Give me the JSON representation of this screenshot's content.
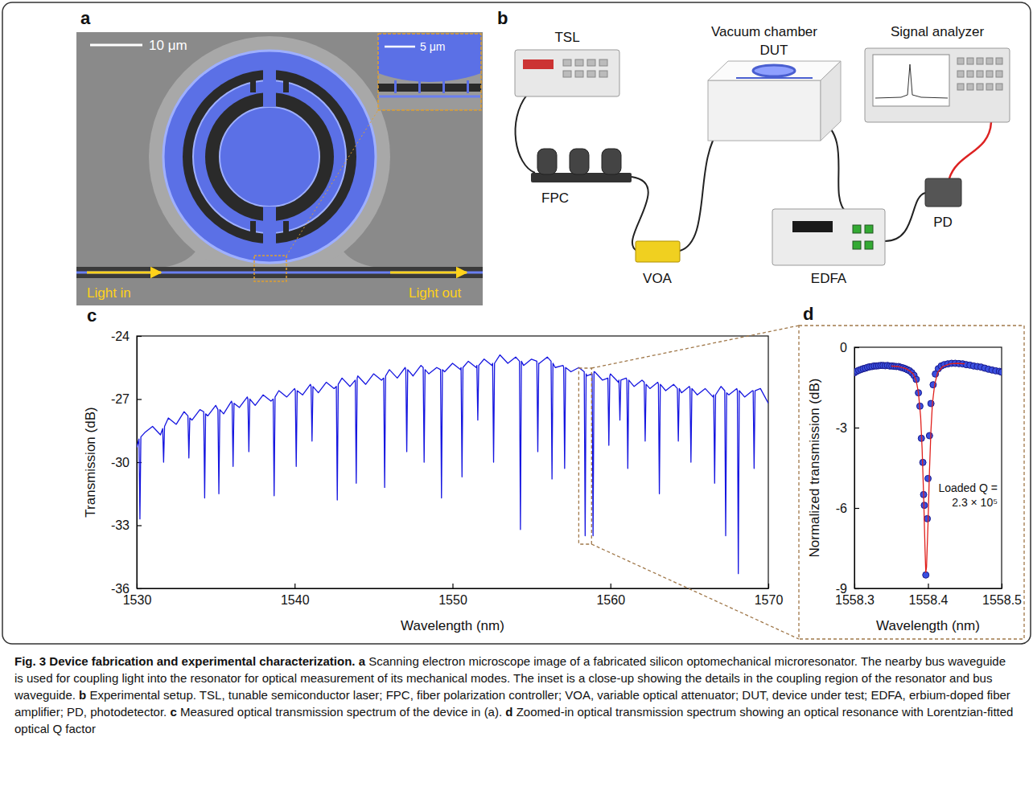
{
  "panels": {
    "a": {
      "label": "a",
      "scale_bar": "10 μm",
      "inset_scale_bar": "5 μm",
      "light_in": "Light in",
      "light_out": "Light out"
    },
    "b": {
      "label": "b",
      "labels": [
        "TSL",
        "FPC",
        "VOA",
        "Vacuum chamber",
        "DUT",
        "EDFA",
        "Signal analyzer",
        "PD"
      ]
    }
  },
  "chart_data": [
    {
      "panel_label": "c",
      "type": "line",
      "color": "#1616e0",
      "xlabel": "Wavelength (nm)",
      "ylabel": "Transmission (dB)",
      "xlim": [
        1530,
        1570
      ],
      "ylim": [
        -36,
        -24
      ],
      "xticks": [
        1530,
        1540,
        1550,
        1560,
        1570
      ],
      "yticks": [
        -36,
        -33,
        -30,
        -27,
        -24
      ],
      "x": [
        1530.0,
        1530.14,
        1530.2,
        1530.26,
        1530.5,
        1531.0,
        1531.5,
        1531.64,
        1531.7,
        1531.76,
        1532.0,
        1532.5,
        1533.0,
        1533.24,
        1533.3,
        1533.36,
        1533.5,
        1534.0,
        1534.24,
        1534.3,
        1534.36,
        1534.5,
        1535.0,
        1535.14,
        1535.2,
        1535.26,
        1535.5,
        1536.0,
        1536.04,
        1536.1,
        1536.16,
        1536.5,
        1537.0,
        1537.04,
        1537.1,
        1537.16,
        1537.5,
        1538.0,
        1538.5,
        1538.64,
        1538.7,
        1538.76,
        1539.0,
        1539.5,
        1540.0,
        1540.04,
        1540.1,
        1540.16,
        1540.5,
        1541.0,
        1541.04,
        1541.1,
        1541.16,
        1541.5,
        1542.0,
        1542.5,
        1542.64,
        1542.7,
        1542.76,
        1543.0,
        1543.5,
        1543.84,
        1543.9,
        1543.96,
        1544.0,
        1544.5,
        1545.0,
        1545.5,
        1545.64,
        1545.7,
        1545.76,
        1546.0,
        1546.5,
        1547.0,
        1547.04,
        1547.1,
        1547.16,
        1547.5,
        1548.0,
        1548.14,
        1548.2,
        1548.26,
        1548.5,
        1549.0,
        1549.24,
        1549.3,
        1549.36,
        1549.5,
        1550.0,
        1550.5,
        1550.54,
        1550.6,
        1550.66,
        1551.0,
        1551.5,
        1551.54,
        1551.6,
        1551.66,
        1552.0,
        1552.5,
        1552.54,
        1552.6,
        1552.66,
        1553.0,
        1553.5,
        1554.0,
        1554.24,
        1554.3,
        1554.36,
        1554.5,
        1555.0,
        1555.34,
        1555.4,
        1555.46,
        1555.5,
        1556.0,
        1556.24,
        1556.3,
        1556.36,
        1556.5,
        1557.0,
        1557.04,
        1557.1,
        1557.16,
        1557.5,
        1558.0,
        1558.34,
        1558.4,
        1558.46,
        1558.5,
        1558.84,
        1558.9,
        1558.96,
        1559.0,
        1559.5,
        1559.84,
        1559.9,
        1559.96,
        1560.0,
        1560.5,
        1560.54,
        1560.6,
        1560.66,
        1561.0,
        1561.04,
        1561.1,
        1561.16,
        1561.5,
        1562.0,
        1562.14,
        1562.2,
        1562.26,
        1562.5,
        1563.0,
        1563.04,
        1563.1,
        1563.16,
        1563.5,
        1564.0,
        1564.24,
        1564.3,
        1564.36,
        1564.5,
        1565.0,
        1565.04,
        1565.1,
        1565.16,
        1565.5,
        1566.0,
        1566.5,
        1566.54,
        1566.6,
        1566.66,
        1567.0,
        1567.24,
        1567.3,
        1567.36,
        1567.5,
        1568.0,
        1568.04,
        1568.1,
        1568.16,
        1568.5,
        1569.0,
        1569.04,
        1569.1,
        1569.16,
        1569.5,
        1570.0
      ],
      "values": [
        -29.3,
        -28.9,
        -32.7,
        -28.8,
        -28.6,
        -28.3,
        -28.7,
        -28.4,
        -30.0,
        -28.3,
        -27.9,
        -28.2,
        -27.6,
        -27.8,
        -29.8,
        -27.9,
        -28.0,
        -27.5,
        -27.6,
        -31.7,
        -27.7,
        -27.8,
        -27.3,
        -27.5,
        -31.5,
        -27.5,
        -27.7,
        -27.1,
        -27.2,
        -30.2,
        -27.2,
        -27.4,
        -26.9,
        -27.0,
        -29.5,
        -27.0,
        -27.3,
        -26.8,
        -27.1,
        -27.0,
        -31.6,
        -26.9,
        -26.6,
        -26.9,
        -26.5,
        -26.6,
        -30.2,
        -26.6,
        -26.8,
        -26.3,
        -26.4,
        -29.0,
        -26.4,
        -26.7,
        -26.2,
        -26.5,
        -26.4,
        -31.8,
        -26.3,
        -26.0,
        -26.4,
        -26.1,
        -31.0,
        -26.0,
        -25.9,
        -26.3,
        -25.8,
        -26.1,
        -26.0,
        -31.2,
        -25.9,
        -25.6,
        -26.0,
        -25.5,
        -25.6,
        -29.5,
        -25.6,
        -25.9,
        -25.4,
        -25.5,
        -30.0,
        -25.6,
        -25.8,
        -25.5,
        -25.6,
        -31.7,
        -25.6,
        -25.7,
        -25.3,
        -25.6,
        -25.5,
        -30.7,
        -25.5,
        -25.2,
        -25.5,
        -25.4,
        -28.0,
        -25.4,
        -25.1,
        -25.4,
        -25.3,
        -30.0,
        -25.3,
        -24.9,
        -25.3,
        -25.0,
        -25.2,
        -33.2,
        -25.2,
        -25.4,
        -25.1,
        -25.2,
        -29.5,
        -25.3,
        -25.3,
        -25.0,
        -25.2,
        -30.8,
        -25.3,
        -25.5,
        -25.4,
        -25.5,
        -30.3,
        -25.5,
        -25.7,
        -25.5,
        -25.7,
        -33.5,
        -25.8,
        -25.9,
        -25.8,
        -33.5,
        -25.7,
        -25.7,
        -26.1,
        -26.0,
        -29.2,
        -25.9,
        -25.8,
        -26.2,
        -26.1,
        -28.0,
        -26.1,
        -26.0,
        -26.1,
        -30.3,
        -26.1,
        -26.4,
        -26.1,
        -26.2,
        -29.0,
        -26.3,
        -26.5,
        -26.2,
        -26.3,
        -31.5,
        -26.3,
        -26.6,
        -26.3,
        -26.5,
        -29.0,
        -26.5,
        -26.7,
        -26.4,
        -26.5,
        -30.0,
        -26.5,
        -26.8,
        -26.5,
        -26.9,
        -26.8,
        -31.0,
        -26.8,
        -26.4,
        -26.6,
        -33.5,
        -26.7,
        -26.8,
        -26.5,
        -26.6,
        -35.3,
        -26.6,
        -26.9,
        -26.6,
        -26.6,
        -30.3,
        -26.6,
        -26.5,
        -27.2
      ]
    },
    {
      "panel_label": "d",
      "type": "scatter",
      "xlabel": "Wavelength (nm)",
      "ylabel": "Normalized transmission (dB)",
      "xlim": [
        1558.3,
        1558.5
      ],
      "ylim": [
        -9,
        0
      ],
      "xticks": [
        1558.3,
        1558.4,
        1558.5
      ],
      "yticks": [
        -9,
        -6,
        -3,
        0
      ],
      "annotations": [
        "Loaded Q = 2.3 × 10⁵"
      ],
      "series": [
        {
          "type": "scatter",
          "marker": "circle",
          "color": "#3a4fe0",
          "x": [
            1558.3,
            1558.303,
            1558.306,
            1558.309,
            1558.312,
            1558.315,
            1558.318,
            1558.321,
            1558.324,
            1558.327,
            1558.33,
            1558.333,
            1558.336,
            1558.339,
            1558.342,
            1558.345,
            1558.348,
            1558.351,
            1558.354,
            1558.357,
            1558.36,
            1558.363,
            1558.366,
            1558.369,
            1558.372,
            1558.375,
            1558.378,
            1558.381,
            1558.384,
            1558.387,
            1558.389,
            1558.391,
            1558.393,
            1558.394,
            1558.395,
            1558.397,
            1558.399,
            1558.4,
            1558.402,
            1558.404,
            1558.407,
            1558.41,
            1558.414,
            1558.418,
            1558.422,
            1558.427,
            1558.432,
            1558.437,
            1558.442,
            1558.447,
            1558.452,
            1558.457,
            1558.462,
            1558.467,
            1558.472,
            1558.477,
            1558.482,
            1558.487,
            1558.492,
            1558.497,
            1558.5
          ],
          "values": [
            -0.95,
            -0.9,
            -0.86,
            -0.83,
            -0.8,
            -0.78,
            -0.75,
            -0.73,
            -0.72,
            -0.7,
            -0.7,
            -0.69,
            -0.68,
            -0.68,
            -0.69,
            -0.68,
            -0.7,
            -0.7,
            -0.71,
            -0.72,
            -0.72,
            -0.75,
            -0.77,
            -0.8,
            -0.84,
            -0.88,
            -0.95,
            -1.05,
            -1.2,
            -1.7,
            -2.2,
            -3.4,
            -4.3,
            -5.5,
            -5.9,
            -8.5,
            -6.4,
            -4.9,
            -3.3,
            -2.1,
            -1.4,
            -1.0,
            -0.8,
            -0.7,
            -0.65,
            -0.62,
            -0.6,
            -0.6,
            -0.61,
            -0.62,
            -0.65,
            -0.67,
            -0.7,
            -0.72,
            -0.74,
            -0.78,
            -0.82,
            -0.85,
            -0.88,
            -0.9,
            -0.93
          ]
        },
        {
          "type": "line",
          "color": "#e0201c",
          "x": [
            1558.35,
            1558.36,
            1558.37,
            1558.375,
            1558.38,
            1558.384,
            1558.387,
            1558.39,
            1558.392,
            1558.394,
            1558.396,
            1558.397,
            1558.398,
            1558.4,
            1558.402,
            1558.404,
            1558.406,
            1558.409,
            1558.413,
            1558.42,
            1558.43,
            1558.44,
            1558.45
          ],
          "values": [
            -0.7,
            -0.72,
            -0.8,
            -0.88,
            -1.0,
            -1.25,
            -1.7,
            -2.6,
            -3.8,
            -5.5,
            -7.6,
            -8.4,
            -8.2,
            -6.6,
            -4.6,
            -3.1,
            -2.1,
            -1.4,
            -0.95,
            -0.72,
            -0.62,
            -0.6,
            -0.62
          ]
        }
      ]
    }
  ],
  "caption": {
    "title": "Fig. 3 Device fabrication and experimental characterization.",
    "items": [
      {
        "label": "a",
        "text": "Scanning electron microscope image of a fabricated silicon optomechanical microresonator. The nearby bus waveguide is used for coupling light into the resonator for optical measurement of its mechanical modes. The inset is a close-up showing the details in the coupling region of the resonator and bus waveguide."
      },
      {
        "label": "b",
        "text": "Experimental setup. TSL, tunable semiconductor laser; FPC, fiber polarization controller; VOA, variable optical attenuator; DUT, device under test; EDFA, erbium-doped fiber amplifier; PD, photodetector."
      },
      {
        "label": "c",
        "text": "Measured optical transmission spectrum of the device in (a)."
      },
      {
        "label": "d",
        "text": "Zoomed-in optical transmission spectrum showing an optical resonance with Lorentzian-fitted optical Q factor"
      }
    ]
  }
}
